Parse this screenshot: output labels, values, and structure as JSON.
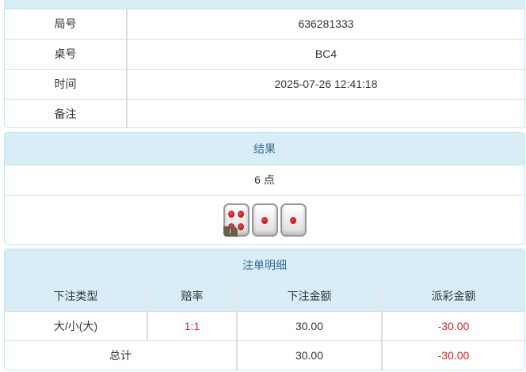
{
  "info": {
    "rows": [
      {
        "label": "局号",
        "value": "636281333"
      },
      {
        "label": "桌号",
        "value": "BC4"
      },
      {
        "label": "时间",
        "value": "2025-07-26 12:41:18"
      },
      {
        "label": "备注",
        "value": ""
      }
    ]
  },
  "result": {
    "title": "结果",
    "points": "6 点",
    "dice": [
      4,
      1,
      1
    ],
    "info_badge": "i"
  },
  "bets": {
    "title": "注单明细",
    "headers": [
      "下注类型",
      "赔率",
      "下注金额",
      "派彩金额"
    ],
    "rows": [
      {
        "type": "大/小(大)",
        "odds": "1:1",
        "amount": "30.00",
        "payout": "-30.00"
      }
    ],
    "total": {
      "label": "总计",
      "amount": "30.00",
      "payout": "-30.00"
    }
  },
  "colors": {
    "header_bg": "#d9edf7",
    "header_text": "#31708f",
    "negative": "#e02020"
  }
}
